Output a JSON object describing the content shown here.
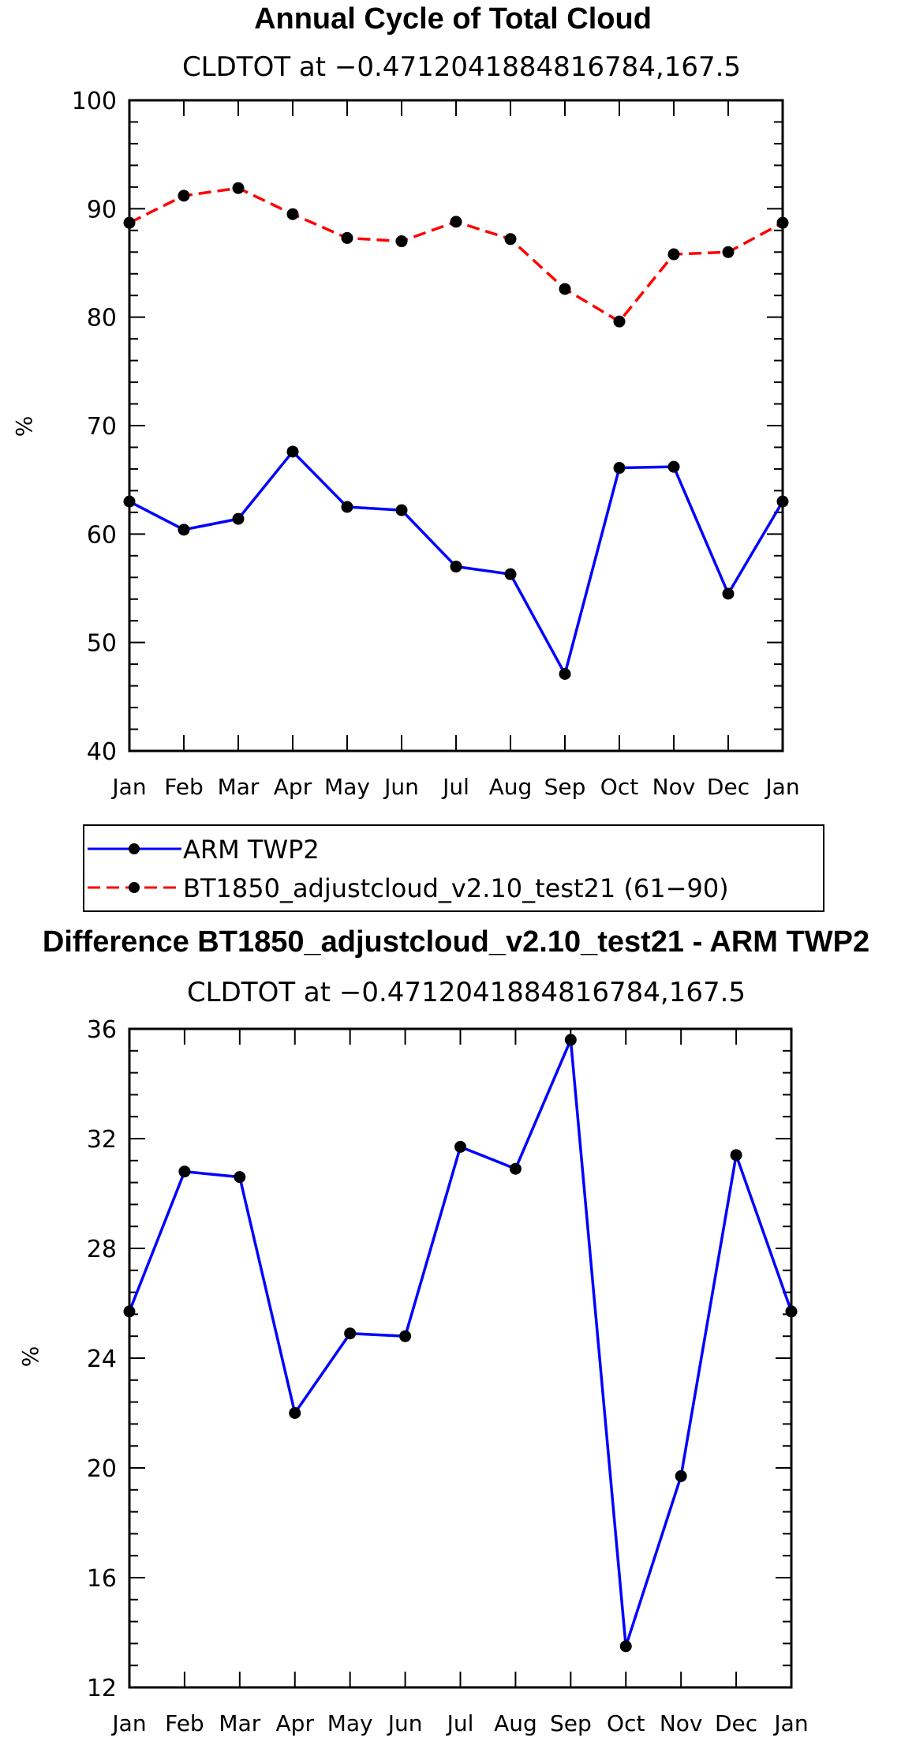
{
  "chart_data": [
    {
      "type": "line",
      "title": "Annual Cycle of Total Cloud",
      "subtitle": "CLDTOT at −0.4712041884816784,167.5",
      "xlabel": "",
      "ylabel": "%",
      "categories": [
        "Jan",
        "Feb",
        "Mar",
        "Apr",
        "May",
        "Jun",
        "Jul",
        "Aug",
        "Sep",
        "Oct",
        "Nov",
        "Dec",
        "Jan"
      ],
      "ylim": [
        40,
        100
      ],
      "yticks": [
        40,
        50,
        60,
        70,
        80,
        90,
        100
      ],
      "grid": false,
      "legend_position": "bottom",
      "series": [
        {
          "name": "ARM TWP2",
          "color": "#0000ff",
          "dash": "solid",
          "marker": "filled-circle",
          "values": [
            63.0,
            60.4,
            61.4,
            67.6,
            62.5,
            62.2,
            57.0,
            56.3,
            47.1,
            66.1,
            66.2,
            54.5,
            63.0
          ]
        },
        {
          "name": "BT1850_adjustcloud_v2.10_test21 (61−90)",
          "color": "#ff0000",
          "dash": "dashed",
          "marker": "filled-circle",
          "values": [
            88.7,
            91.2,
            91.9,
            89.5,
            87.3,
            87.0,
            88.8,
            87.2,
            82.6,
            79.6,
            85.8,
            86.0,
            88.7
          ]
        }
      ]
    },
    {
      "type": "line",
      "title": "Difference BT1850_adjustcloud_v2.10_test21 - ARM TWP2",
      "subtitle": "CLDTOT at −0.4712041884816784,167.5",
      "xlabel": "",
      "ylabel": "%",
      "categories": [
        "Jan",
        "Feb",
        "Mar",
        "Apr",
        "May",
        "Jun",
        "Jul",
        "Aug",
        "Sep",
        "Oct",
        "Nov",
        "Dec",
        "Jan"
      ],
      "ylim": [
        12,
        36
      ],
      "yticks": [
        12,
        16,
        20,
        24,
        28,
        32,
        36
      ],
      "grid": false,
      "series": [
        {
          "color": "#0000ff",
          "dash": "solid",
          "marker": "filled-circle",
          "values": [
            25.7,
            30.8,
            30.6,
            22.0,
            24.9,
            24.8,
            31.7,
            30.9,
            35.6,
            13.5,
            19.7,
            31.4,
            25.7
          ]
        }
      ]
    }
  ]
}
